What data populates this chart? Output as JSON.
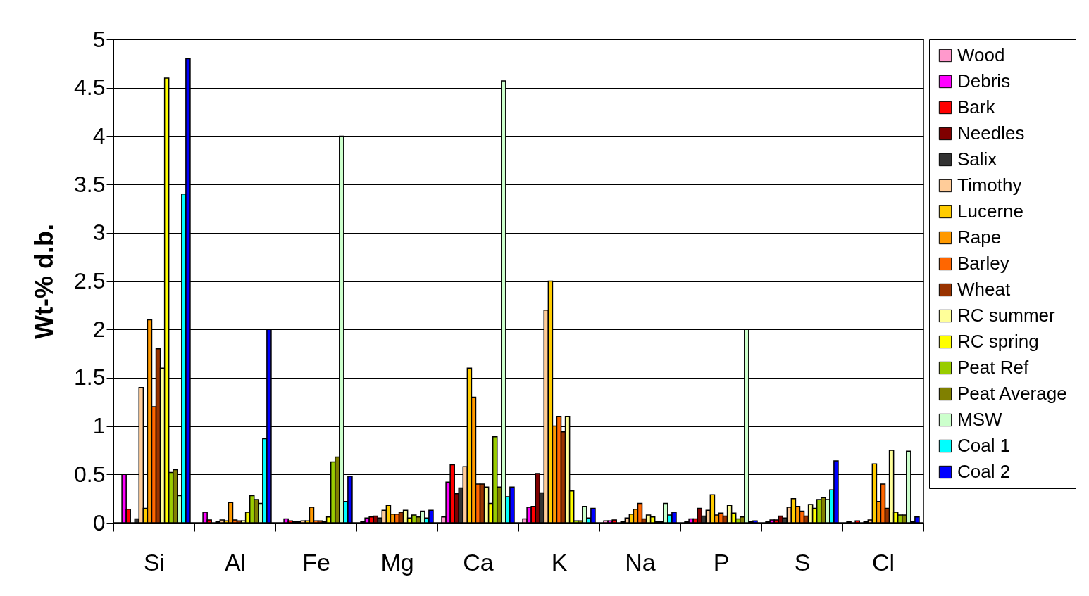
{
  "chart_data": {
    "type": "bar",
    "ylabel": "Wt-% d.b.",
    "categories": [
      "Si",
      "Al",
      "Fe",
      "Mg",
      "Ca",
      "K",
      "Na",
      "P",
      "S",
      "Cl"
    ],
    "ylim": [
      0,
      5
    ],
    "yticks": [
      0,
      0.5,
      1,
      1.5,
      2,
      2.5,
      3,
      3.5,
      4,
      4.5,
      5
    ],
    "grid": "y",
    "legend": "right",
    "series": [
      {
        "name": "Wood",
        "color": "#ff99cc",
        "values": [
          0,
          0,
          0,
          0.01,
          0.06,
          0.04,
          0.02,
          0.01,
          0.01,
          0.01
        ]
      },
      {
        "name": "Debris",
        "color": "#ff00ff",
        "values": [
          0.5,
          0.11,
          0.04,
          0.05,
          0.42,
          0.16,
          0.02,
          0.04,
          0.03,
          0
        ]
      },
      {
        "name": "Bark",
        "color": "#ff0000",
        "values": [
          0.14,
          0.03,
          0.02,
          0.06,
          0.6,
          0.17,
          0.03,
          0.04,
          0.03,
          0.02
        ]
      },
      {
        "name": "Needles",
        "color": "#800000",
        "values": [
          0,
          0,
          0.01,
          0.07,
          0.3,
          0.51,
          0,
          0.15,
          0.07,
          0
        ]
      },
      {
        "name": "Salix",
        "color": "#333333",
        "values": [
          0.04,
          0.01,
          0.01,
          0.05,
          0.36,
          0.31,
          0.01,
          0.07,
          0.05,
          0.01
        ]
      },
      {
        "name": "Timothy",
        "color": "#ffcc99",
        "values": [
          1.4,
          0.03,
          0.02,
          0.13,
          0.58,
          2.2,
          0.05,
          0.13,
          0.16,
          0.03
        ]
      },
      {
        "name": "Lucerne",
        "color": "#ffcc00",
        "values": [
          0.15,
          0.02,
          0.02,
          0.18,
          1.6,
          2.5,
          0.09,
          0.29,
          0.25,
          0.61
        ]
      },
      {
        "name": "Rape",
        "color": "#ff9900",
        "values": [
          2.1,
          0.21,
          0.16,
          0.09,
          1.3,
          1.0,
          0.14,
          0.08,
          0.17,
          0.22
        ]
      },
      {
        "name": "Barley",
        "color": "#ff6600",
        "values": [
          1.2,
          0.03,
          0.02,
          0.09,
          0.4,
          1.1,
          0.2,
          0.1,
          0.12,
          0.4
        ]
      },
      {
        "name": "Wheat",
        "color": "#993300",
        "values": [
          1.8,
          0.02,
          0.02,
          0.11,
          0.4,
          0.94,
          0.04,
          0.07,
          0.07,
          0.15
        ]
      },
      {
        "name": "RC summer",
        "color": "#ffff99",
        "values": [
          1.6,
          0.02,
          0.01,
          0.13,
          0.37,
          1.1,
          0.08,
          0.18,
          0.19,
          0.75
        ]
      },
      {
        "name": "RC spring",
        "color": "#ffff00",
        "values": [
          4.6,
          0.11,
          0.06,
          0.05,
          0.2,
          0.33,
          0.06,
          0.1,
          0.15,
          0.11
        ]
      },
      {
        "name": "Peat Ref",
        "color": "#99cc00",
        "values": [
          0.52,
          0.28,
          0.63,
          0.08,
          0.89,
          0.02,
          0.01,
          0.04,
          0.24,
          0.08
        ]
      },
      {
        "name": "Peat Average",
        "color": "#808000",
        "values": [
          0.55,
          0.24,
          0.68,
          0.06,
          0.37,
          0.02,
          0.01,
          0.06,
          0.26,
          0.08
        ]
      },
      {
        "name": "MSW",
        "color": "#ccffcc",
        "values": [
          0.28,
          0.2,
          4.0,
          0.12,
          4.57,
          0.17,
          0.2,
          2.0,
          0.24,
          0.74
        ]
      },
      {
        "name": "Coal 1",
        "color": "#00ffff",
        "values": [
          3.4,
          0.87,
          0.22,
          0.05,
          0.27,
          0.05,
          0.08,
          0.01,
          0.34,
          0.01
        ]
      },
      {
        "name": "Coal 2",
        "color": "#0000ff",
        "values": [
          4.8,
          2.0,
          0.48,
          0.13,
          0.37,
          0.15,
          0.11,
          0.02,
          0.64,
          0.06
        ]
      }
    ]
  }
}
